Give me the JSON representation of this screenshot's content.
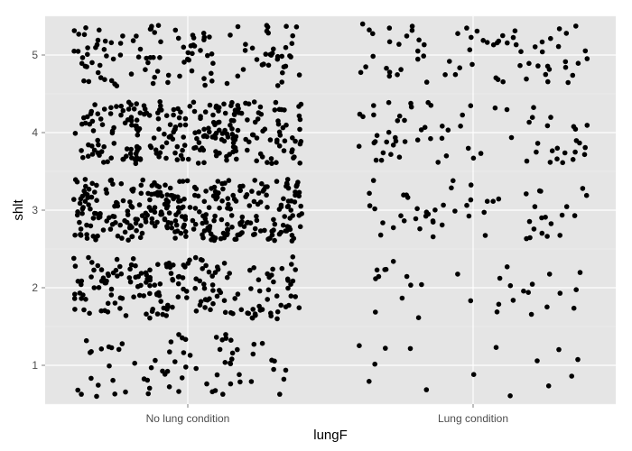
{
  "colors": {
    "panel_background": "#e5e5e5",
    "grid_major": "#ffffff",
    "grid_minor": "#f2f2f2",
    "point": "#000000",
    "tick_text": "#4d4d4d"
  },
  "chart_data": {
    "type": "scatter",
    "jitter": true,
    "xlabel": "lungF",
    "ylabel": "shlt",
    "categories": [
      "No lung condition",
      "Lung condition"
    ],
    "y_ticks": [
      1,
      2,
      3,
      4,
      5
    ],
    "ylim": [
      0.5,
      5.5
    ],
    "grid": true,
    "legend": "none",
    "series": [
      {
        "category": "No lung condition",
        "points": [
          {
            "y": 1,
            "count": 70
          },
          {
            "y": 2,
            "count": 190
          },
          {
            "y": 3,
            "count": 330
          },
          {
            "y": 4,
            "count": 260
          },
          {
            "y": 5,
            "count": 120
          }
        ]
      },
      {
        "category": "Lung condition",
        "points": [
          {
            "y": 1,
            "count": 14
          },
          {
            "y": 2,
            "count": 30
          },
          {
            "y": 3,
            "count": 55
          },
          {
            "y": 4,
            "count": 68
          },
          {
            "y": 5,
            "count": 70
          }
        ]
      }
    ]
  }
}
